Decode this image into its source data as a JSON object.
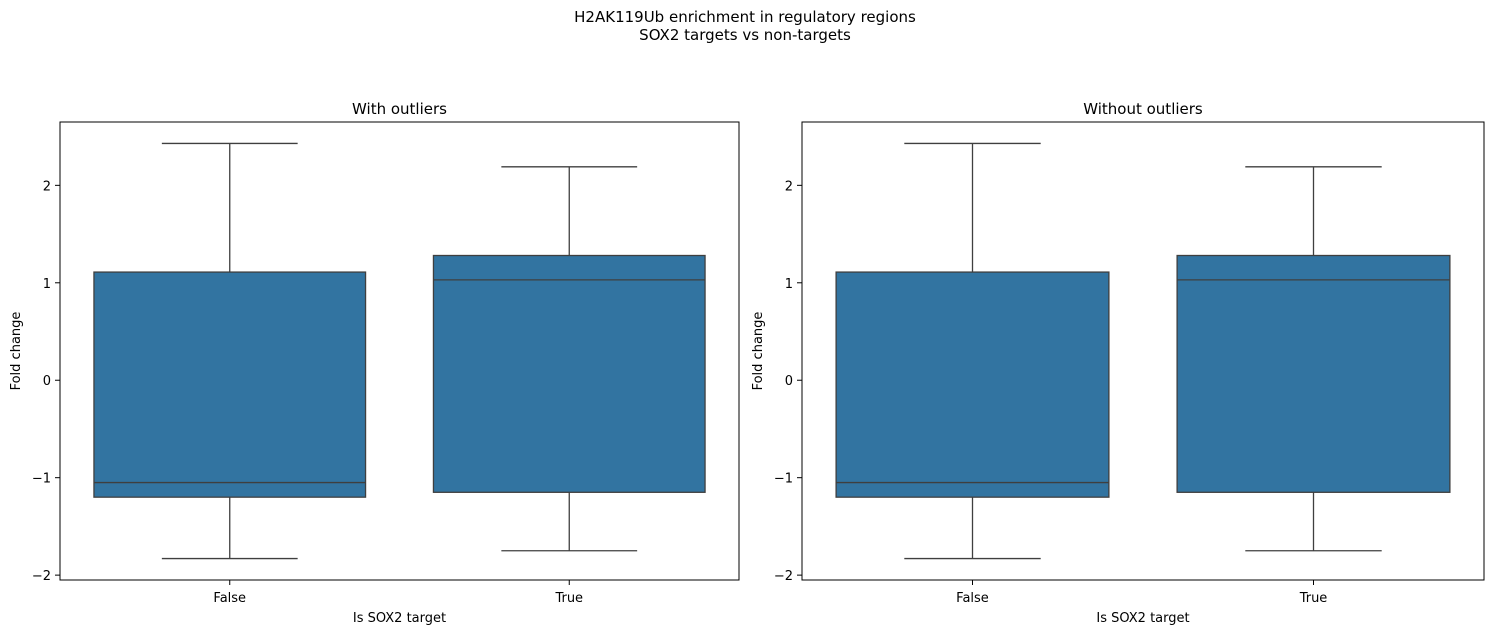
{
  "figure": {
    "suptitle_line1": "H2AK119Ub enrichment in regulatory regions",
    "suptitle_line2": "SOX2 targets vs non-targets"
  },
  "chart_data": [
    {
      "type": "box",
      "title": "With outliers",
      "xlabel": "Is SOX2 target",
      "ylabel": "Fold change",
      "ylim": [
        -2.05,
        2.65
      ],
      "yticks": [
        -2,
        -1,
        0,
        1,
        2
      ],
      "ytick_labels": [
        "−2",
        "−1",
        "0",
        "1",
        "2"
      ],
      "categories": [
        "False",
        "True"
      ],
      "boxes": [
        {
          "category": "False",
          "whisker_low": -1.83,
          "q1": -1.2,
          "median": -1.05,
          "q3": 1.11,
          "whisker_high": 2.43
        },
        {
          "category": "True",
          "whisker_low": -1.75,
          "q1": -1.15,
          "median": 1.03,
          "q3": 1.28,
          "whisker_high": 2.19
        }
      ],
      "box_color": "#3274a1",
      "line_color": "#3f3f3f"
    },
    {
      "type": "box",
      "title": "Without outliers",
      "xlabel": "Is SOX2 target",
      "ylabel": "Fold change",
      "ylim": [
        -2.05,
        2.65
      ],
      "yticks": [
        -2,
        -1,
        0,
        1,
        2
      ],
      "ytick_labels": [
        "−2",
        "−1",
        "0",
        "1",
        "2"
      ],
      "categories": [
        "False",
        "True"
      ],
      "boxes": [
        {
          "category": "False",
          "whisker_low": -1.83,
          "q1": -1.2,
          "median": -1.05,
          "q3": 1.11,
          "whisker_high": 2.43
        },
        {
          "category": "True",
          "whisker_low": -1.75,
          "q1": -1.15,
          "median": 1.03,
          "q3": 1.28,
          "whisker_high": 2.19
        }
      ],
      "box_color": "#3274a1",
      "line_color": "#3f3f3f"
    }
  ]
}
